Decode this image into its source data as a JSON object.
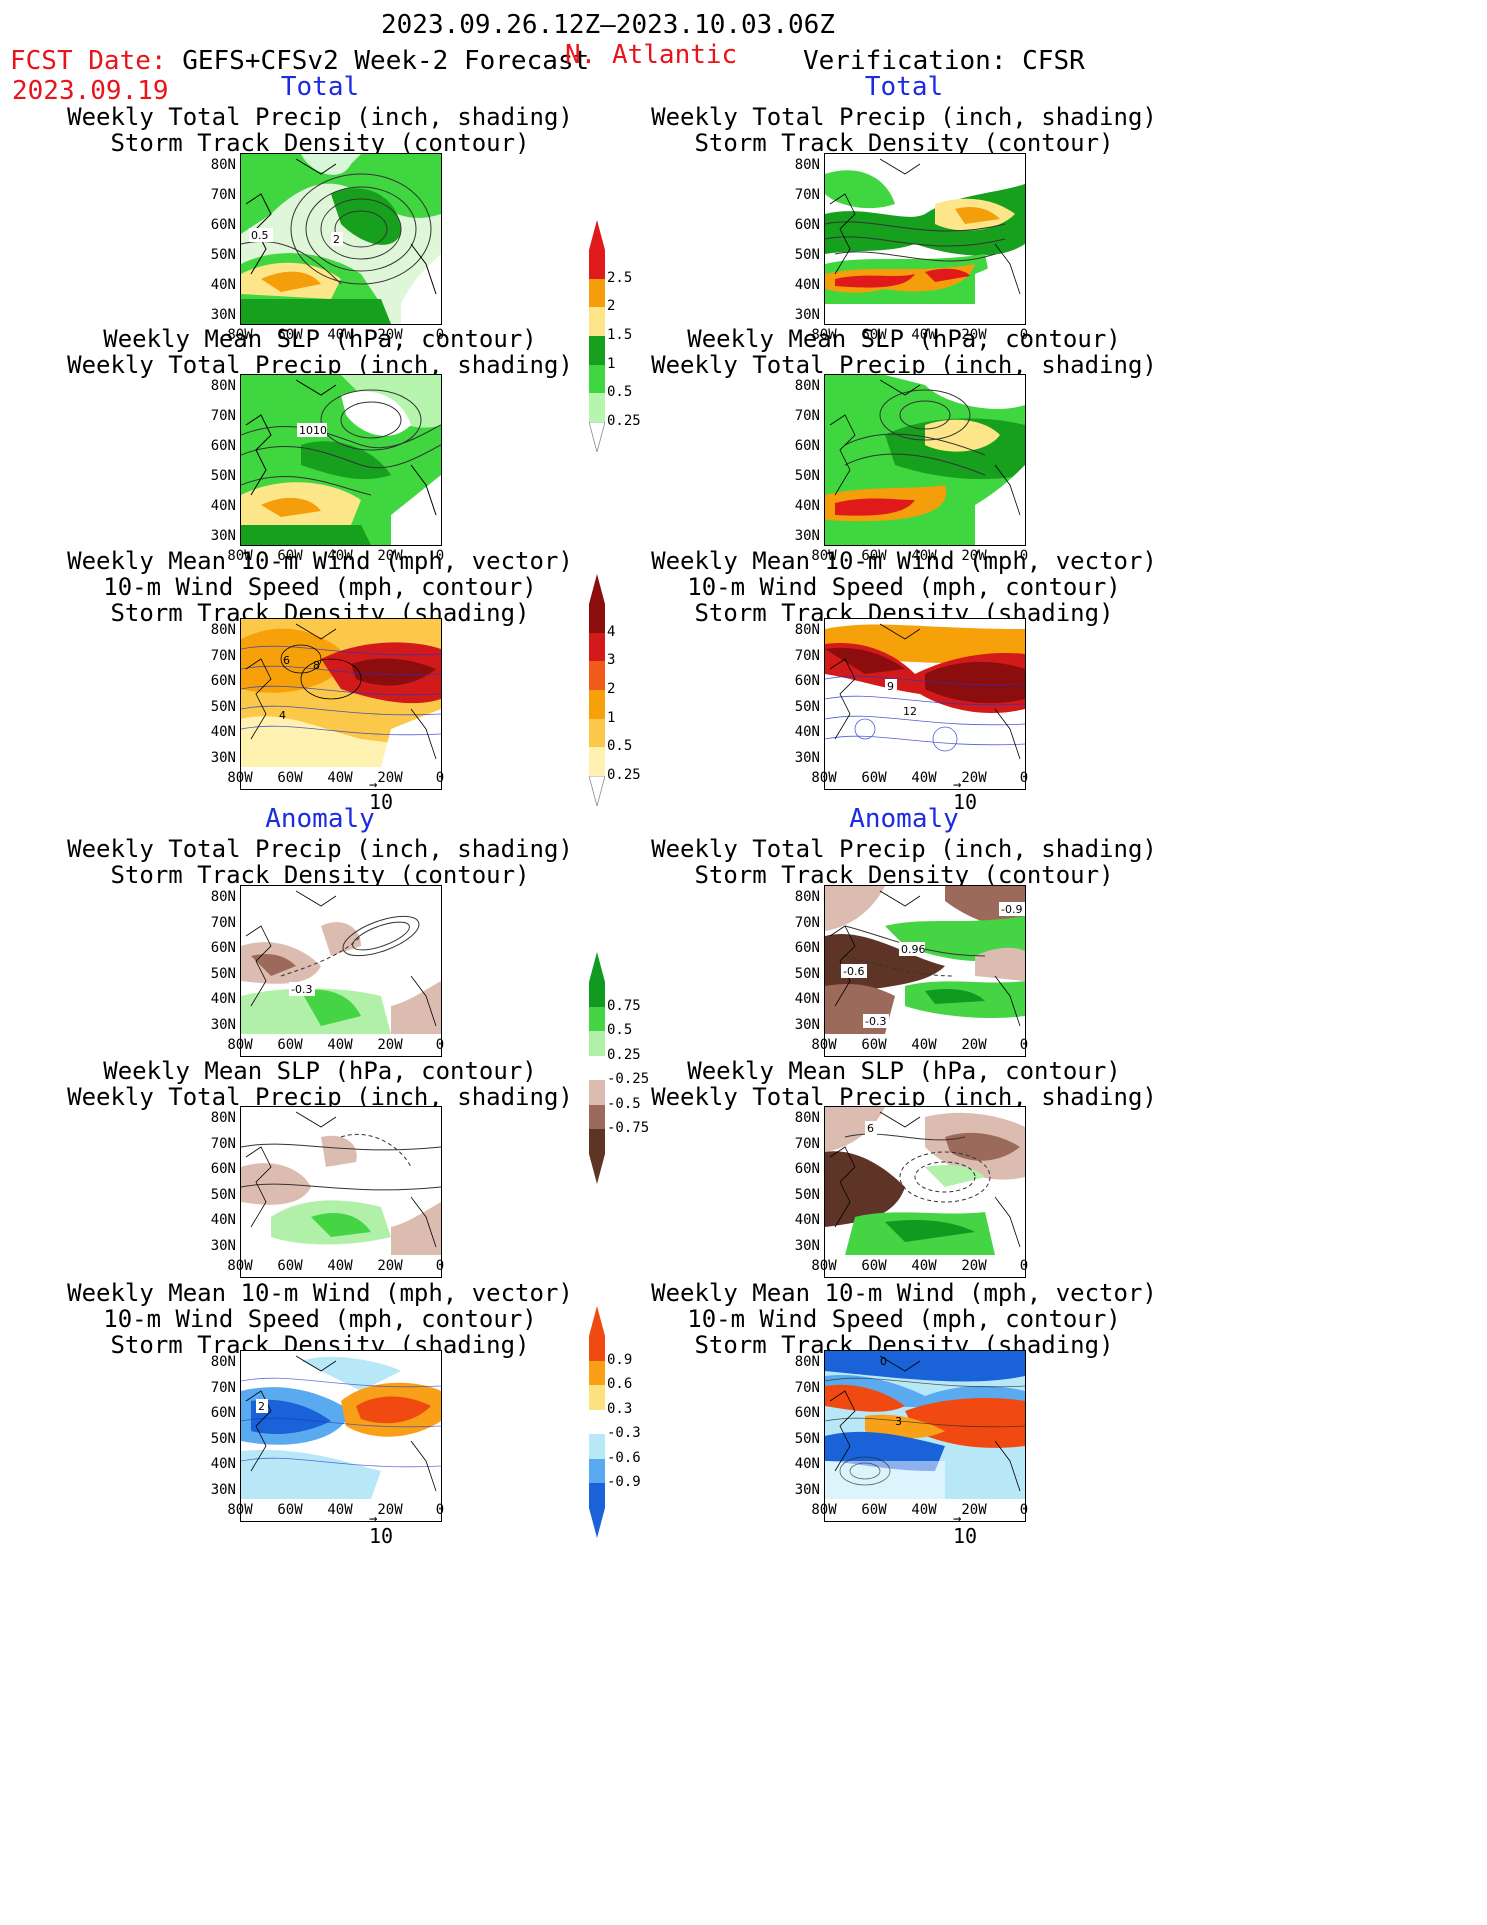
{
  "header": {
    "period": "2023.09.26.12Z–2023.10.03.06Z",
    "fcst_label": "FCST Date:",
    "fcst_model": "GEFS+CFSv2 Week-2 Forecast",
    "region": "N. Atlantic",
    "fcst_date": "2023.09.19",
    "verification": "Verification: CFSR"
  },
  "sections": {
    "total": "Total",
    "anomaly": "Anomaly"
  },
  "panel_titles": {
    "precip_storm": "Weekly Total Precip (inch, shading)\nStorm Track Density (contour)",
    "slp_precip": "Weekly Mean SLP (hPa, contour)\nWeekly Total Precip (inch, shading)",
    "wind_storm": "Weekly Mean 10-m Wind (mph, vector)\n10-m Wind Speed (mph, contour)\nStorm Track Density (shading)"
  },
  "axes": {
    "lat": [
      "80N",
      "70N",
      "60N",
      "50N",
      "40N",
      "30N"
    ],
    "lon": [
      "80W",
      "60W",
      "40W",
      "20W",
      "0"
    ]
  },
  "vector_ref": "10",
  "contour_labels": {
    "f_precip": [
      "0.5",
      "2"
    ],
    "f_slp": [
      "1010"
    ],
    "f_wind": [
      "6",
      "8",
      "4"
    ],
    "v_wind": [
      "9",
      "12"
    ],
    "fa_precip": [
      "-0.3"
    ],
    "va_precip": [
      "-0.9",
      "0.96",
      "-0.6",
      "-0.3"
    ],
    "va_slp": [
      "6"
    ],
    "fa_wind": [
      "2"
    ],
    "va_wind": [
      "0",
      "3"
    ]
  },
  "colorbars": {
    "precip_total": {
      "labels": [
        "2.5",
        "2",
        "1.5",
        "1",
        "0.5",
        "0.25"
      ],
      "colors": [
        "#e01a1a",
        "#f59e0b",
        "#fde68a",
        "#16a01e",
        "#3fd63f",
        "#b6f5ad"
      ]
    },
    "storm_total": {
      "labels": [
        "4",
        "3",
        "2",
        "1",
        "0.5",
        "0.25"
      ],
      "colors": [
        "#8b0d0d",
        "#d21a1a",
        "#f05a1a",
        "#f7a10a",
        "#fbc84a",
        "#fff2b0"
      ]
    },
    "precip_anom": {
      "labels": [
        "0.75",
        "0.5",
        "0.25",
        "-0.25",
        "-0.5",
        "-0.75"
      ],
      "colors": [
        "#109a20",
        "#44d444",
        "#b0f0a8",
        "#ffffff",
        "#dcbcb0",
        "#9c6a5a",
        "#5e3426"
      ]
    },
    "storm_anom": {
      "labels": [
        "0.9",
        "0.6",
        "0.3",
        "-0.3",
        "-0.6",
        "-0.9"
      ],
      "colors": [
        "#f04a12",
        "#f7a018",
        "#fde080",
        "#ffffff",
        "#b8e8f8",
        "#5aaaf0",
        "#1a62d8"
      ]
    }
  }
}
